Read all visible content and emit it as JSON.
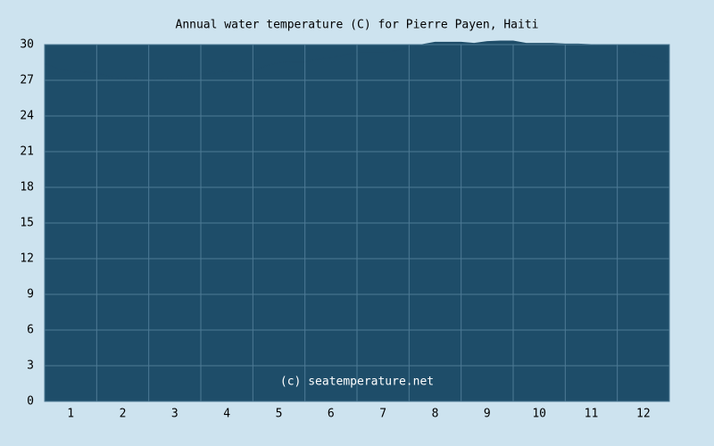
{
  "chart_data": {
    "type": "area",
    "title": "Annual water temperature (C) for Pierre Payen, Haiti",
    "annotation": "(c) seatemperature.net",
    "x": [
      0.5,
      0.75,
      1,
      1.25,
      1.5,
      1.75,
      2,
      2.25,
      2.5,
      2.75,
      3,
      3.25,
      3.5,
      3.75,
      4,
      4.25,
      4.5,
      4.75,
      5,
      5.25,
      5.5,
      5.75,
      6,
      6.25,
      6.5,
      6.75,
      7,
      7.25,
      7.5,
      7.75,
      8,
      8.25,
      8.5,
      8.75,
      9,
      9.25,
      9.5,
      9.75,
      10,
      10.25,
      10.5,
      10.75,
      11,
      11.25,
      11.5,
      11.75,
      12,
      12.25,
      12.5
    ],
    "values": [
      28.4,
      28.0,
      27.8,
      27.7,
      27.6,
      27.3,
      27.2,
      27.25,
      27.0,
      27.2,
      27.3,
      27.35,
      27.5,
      27.6,
      27.8,
      27.7,
      27.8,
      28.2,
      28.5,
      28.6,
      28.6,
      28.8,
      28.9,
      29.1,
      29.3,
      29.3,
      29.3,
      29.5,
      29.7,
      30.0,
      30.2,
      30.2,
      30.2,
      30.1,
      30.25,
      30.3,
      30.3,
      30.1,
      30.1,
      30.1,
      30.05,
      30.05,
      30.0,
      29.9,
      29.8,
      29.5,
      29.1,
      28.9,
      28.5
    ],
    "color": "#1e4d69",
    "xlim": [
      0.5,
      12.5
    ],
    "xticks": [
      1,
      2,
      3,
      4,
      5,
      6,
      7,
      8,
      9,
      10,
      11,
      12
    ],
    "ylim": [
      0,
      30
    ],
    "yticks": [
      0,
      3,
      6,
      9,
      12,
      15,
      18,
      21,
      24,
      27,
      30
    ],
    "grid": true
  }
}
